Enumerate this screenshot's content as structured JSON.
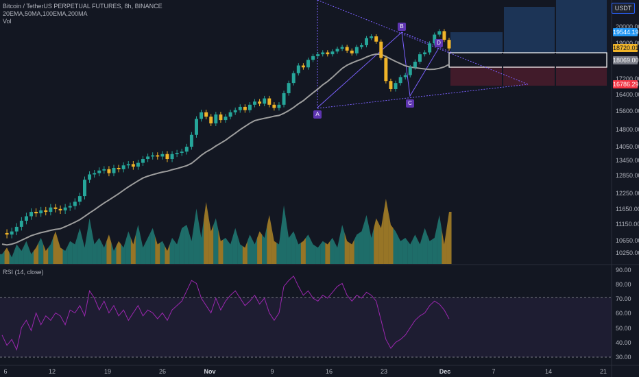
{
  "legend": {
    "symbol": "Bitcoin / TetherUS PERPETUAL FUTURES, 8h, BINANCE",
    "mas": "20EMA,50MA,100EMA,200MA",
    "volume": "Vol"
  },
  "currency": "USDT",
  "price_axis": {
    "ticks": [
      "20000.00",
      "19000.00",
      "17200.00",
      "16400.00",
      "15600.00",
      "14800.00",
      "14050.00",
      "13450.00",
      "12850.00",
      "12250.00",
      "11650.00",
      "11150.00",
      "10650.00",
      "10250.00"
    ]
  },
  "price_tags": {
    "high": {
      "value": "19544.19",
      "color": "#2196f3"
    },
    "last": {
      "value": "18720.01",
      "color": "#f0b429"
    },
    "mid": {
      "value": "18069.00",
      "color": "#787b86"
    },
    "stop": {
      "value": "16786.29",
      "color": "#f23645"
    }
  },
  "rsi": {
    "legend": "RSI (14, close)",
    "ticks": [
      "90.00",
      "80.00",
      "70.00",
      "60.00",
      "50.00",
      "40.00",
      "30.00"
    ],
    "upper_band": 70,
    "lower_band": 30
  },
  "time_axis": [
    {
      "label": "6",
      "bold": false
    },
    {
      "label": "12",
      "bold": false
    },
    {
      "label": "19",
      "bold": false
    },
    {
      "label": "26",
      "bold": false
    },
    {
      "label": "Nov",
      "bold": true
    },
    {
      "label": "9",
      "bold": false
    },
    {
      "label": "16",
      "bold": false
    },
    {
      "label": "23",
      "bold": false
    },
    {
      "label": "Dec",
      "bold": true
    },
    {
      "label": "7",
      "bold": false
    },
    {
      "label": "14",
      "bold": false
    },
    {
      "label": "21",
      "bold": false
    }
  ],
  "pattern_points": [
    "A",
    "B",
    "C",
    "D"
  ],
  "colors": {
    "bg": "#131722",
    "up": "#26a69a",
    "down": "#f0b429",
    "ma": "#9e9e9e",
    "rsi": "#9c27b0",
    "pattern": "#7b61ff",
    "target_zone": "#1d3557",
    "stop_zone": "#4a1c2b"
  },
  "chart_data": {
    "type": "candlestick",
    "price_path": [
      10850,
      10800,
      10900,
      11050,
      11250,
      11400,
      11550,
      11500,
      11600,
      11550,
      11700,
      11650,
      11600,
      11700,
      11750,
      11900,
      12100,
      12700,
      12900,
      12950,
      13050,
      13100,
      12950,
      13150,
      13100,
      13250,
      13300,
      13200,
      13350,
      13500,
      13600,
      13650,
      13600,
      13700,
      13500,
      13700,
      13750,
      13800,
      14000,
      14500,
      15200,
      15500,
      15300,
      15000,
      15400,
      15150,
      15300,
      15500,
      15600,
      15750,
      15600,
      15850,
      16000,
      15900,
      16150,
      15850,
      15700,
      15850,
      16400,
      16900,
      17400,
      17800,
      17700,
      18100,
      18300,
      18400,
      18500,
      18400,
      18550,
      18700,
      18800,
      18600,
      18450,
      18800,
      18900,
      19300,
      19400,
      19100,
      18200,
      17000,
      16600,
      16900,
      17200,
      17300,
      17700,
      18000,
      18400,
      18500,
      19000,
      19500,
      19700,
      19200,
      18720
    ],
    "volume": [
      0.15,
      0.25,
      0.1,
      0.3,
      0.2,
      0.35,
      0.15,
      0.25,
      0.4,
      0.2,
      0.3,
      0.5,
      0.25,
      0.2,
      0.35,
      0.3,
      0.55,
      0.25,
      0.7,
      0.3,
      0.4,
      0.25,
      0.45,
      0.2,
      0.35,
      0.25,
      0.5,
      0.3,
      0.6,
      0.25,
      0.4,
      0.55,
      0.3,
      0.35,
      0.2,
      0.4,
      0.3,
      0.55,
      0.6,
      0.35,
      0.85,
      0.4,
      0.95,
      0.5,
      0.7,
      0.35,
      0.4,
      0.3,
      0.55,
      0.3,
      0.25,
      0.45,
      0.3,
      0.5,
      0.4,
      0.75,
      0.35,
      0.3,
      0.9,
      0.4,
      0.5,
      0.3,
      0.35,
      0.45,
      0.3,
      0.25,
      0.35,
      0.3,
      0.4,
      0.25,
      0.6,
      0.35,
      0.3,
      0.45,
      0.5,
      0.75,
      0.4,
      0.7,
      0.55,
      1.0,
      0.6,
      0.5,
      0.35,
      0.4,
      0.3,
      0.45,
      0.3,
      0.55,
      0.35,
      0.4,
      0.75,
      0.3,
      0.8
    ],
    "rsi_values": [
      45,
      38,
      42,
      35,
      50,
      55,
      48,
      60,
      52,
      58,
      55,
      60,
      58,
      52,
      62,
      60,
      65,
      58,
      75,
      70,
      62,
      68,
      60,
      65,
      58,
      62,
      55,
      60,
      65,
      58,
      62,
      60,
      56,
      60,
      55,
      62,
      65,
      68,
      75,
      82,
      80,
      70,
      65,
      60,
      70,
      62,
      68,
      72,
      75,
      70,
      65,
      68,
      72,
      66,
      70,
      60,
      55,
      60,
      78,
      82,
      85,
      78,
      72,
      75,
      70,
      68,
      72,
      70,
      74,
      78,
      80,
      72,
      68,
      72,
      70,
      74,
      72,
      68,
      55,
      42,
      36,
      40,
      42,
      45,
      50,
      55,
      58,
      60,
      65,
      68,
      66,
      62,
      56
    ],
    "ylim": [
      10250,
      20000
    ],
    "rsi_ylim": [
      30,
      90
    ]
  }
}
